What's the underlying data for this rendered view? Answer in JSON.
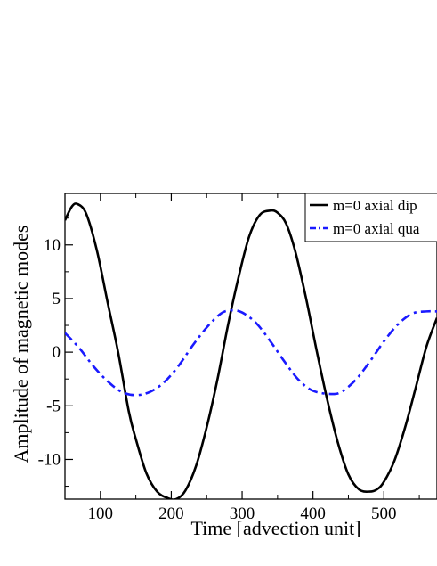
{
  "chart_data": {
    "type": "line",
    "title": "",
    "xlabel": "Time [advection unit]",
    "ylabel": "Amplitude of magnetic modes",
    "xlim": [
      50,
      575
    ],
    "ylim": [
      -13.7,
      14.8
    ],
    "xticks": [
      100,
      200,
      300,
      400,
      500
    ],
    "yticks": [
      10,
      5,
      0,
      -5,
      -10
    ],
    "xtick_labels": [
      "100",
      "200",
      "300",
      "400",
      "500"
    ],
    "ytick_labels": [
      "10",
      "5",
      "0",
      "-5",
      "-10"
    ],
    "grid": false,
    "legend_position": "top-right",
    "series": [
      {
        "name": "m=0 axial dip",
        "color": "#000000",
        "style": "solid",
        "x": [
          50,
          60,
          68,
          80,
          95,
          110,
          125,
          140,
          150,
          165,
          180,
          195,
          207,
          220,
          235,
          250,
          265,
          280,
          295,
          310,
          325,
          340,
          350,
          362,
          375,
          390,
          405,
          420,
          435,
          450,
          465,
          480,
          490,
          500,
          515,
          530,
          545,
          560,
          575
        ],
        "y": [
          12.3,
          13.6,
          13.8,
          12.9,
          9.5,
          4.7,
          0.0,
          -5.5,
          -8.1,
          -11.3,
          -13.0,
          -13.6,
          -13.7,
          -12.9,
          -10.6,
          -7.0,
          -2.6,
          2.5,
          7.0,
          10.8,
          12.8,
          13.2,
          13.0,
          12.0,
          9.4,
          5.1,
          0.2,
          -4.4,
          -8.4,
          -11.4,
          -12.8,
          -13.0,
          -12.8,
          -12.1,
          -10.1,
          -7.0,
          -3.3,
          0.5,
          3.2
        ]
      },
      {
        "name": "m=0 axial qua",
        "color": "#1a1aff",
        "style": "dash-dot",
        "x": [
          50,
          70,
          90,
          110,
          130,
          150,
          170,
          190,
          210,
          230,
          250,
          270,
          285,
          300,
          320,
          340,
          360,
          380,
          400,
          425,
          440,
          460,
          480,
          500,
          520,
          540,
          560,
          575
        ],
        "y": [
          1.8,
          0.4,
          -1.3,
          -2.7,
          -3.7,
          -4.0,
          -3.7,
          -2.8,
          -1.3,
          0.6,
          2.3,
          3.6,
          3.9,
          3.7,
          2.7,
          1.0,
          -0.9,
          -2.6,
          -3.6,
          -3.9,
          -3.7,
          -2.6,
          -0.9,
          1.0,
          2.6,
          3.6,
          3.8,
          3.8
        ]
      }
    ]
  }
}
